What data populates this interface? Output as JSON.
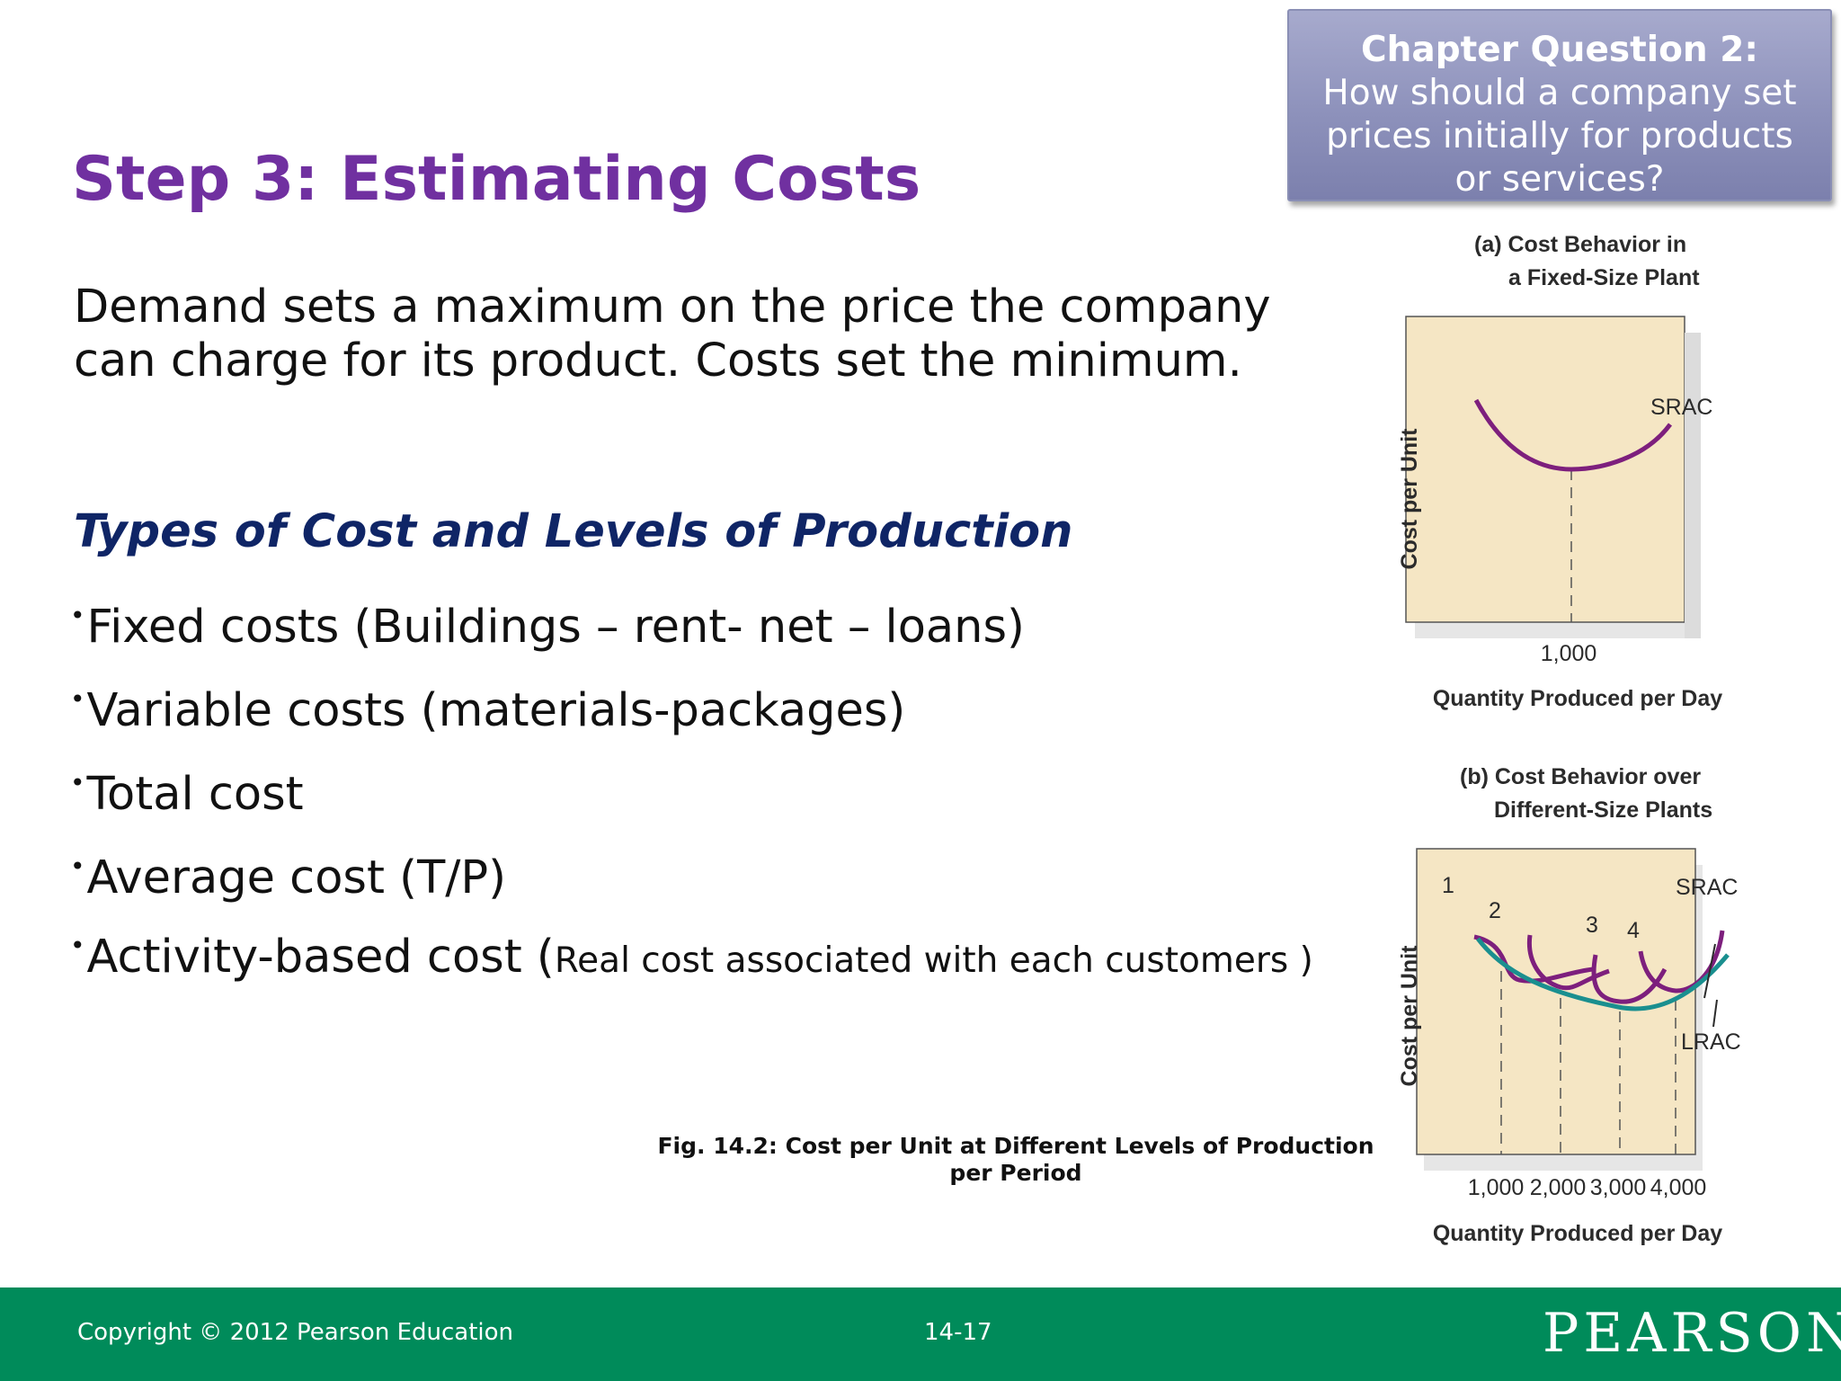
{
  "chapter_question": {
    "title": "Chapter Question 2:",
    "lines": [
      "How should a company set",
      "prices initially for products",
      "or services?"
    ]
  },
  "slide": {
    "title": "Step 3: Estimating Costs",
    "intro_lines": [
      "Demand sets a maximum on the price the company",
      "can charge for its product. Costs set the minimum."
    ],
    "subheading": "Types of Cost and Levels of Production",
    "bullets": [
      {
        "text": "Fixed costs  (Buildings – rent- net – loans)"
      },
      {
        "text": "Variable costs (materials-packages)"
      },
      {
        "text": "Total cost"
      },
      {
        "text": "Average cost (T/P)"
      },
      {
        "text": "Activity-based cost (",
        "small": "Real cost associated with each customers )"
      }
    ],
    "bullet_marker": "•",
    "caption_lines": [
      "Fig. 14.2: Cost per Unit at Different Levels of Production",
      "per Period"
    ]
  },
  "figure": {
    "panel_a": {
      "title_lines": [
        "(a) Cost Behavior in",
        "a Fixed-Size Plant"
      ],
      "ylabel": "Cost per Unit",
      "xlabel": "Quantity Produced per Day",
      "curve_label": "SRAC",
      "x_ticks": [
        "1,000"
      ]
    },
    "panel_b": {
      "title_lines": [
        "(b) Cost Behavior over",
        "Different-Size Plants"
      ],
      "ylabel": "Cost per Unit",
      "xlabel": "Quantity Produced per Day",
      "curve_label_srac": "SRAC",
      "curve_label_lrac": "LRAC",
      "plant_labels": [
        "1",
        "2",
        "3",
        "4"
      ],
      "x_ticks": [
        "1,000",
        "2,000",
        "3,000",
        "4,000"
      ]
    },
    "colors": {
      "plot_bg": "#f5e6c4",
      "srac": "#7d1f7d",
      "lrac": "#1a8f8f"
    }
  },
  "footer": {
    "copyright": "Copyright © 2012 Pearson Education",
    "page": "14-17",
    "logo": "PEARSON"
  },
  "theme": {
    "title_color": "#7030a0",
    "subhead_color": "#0f2566",
    "footer_color": "#008b5a"
  }
}
